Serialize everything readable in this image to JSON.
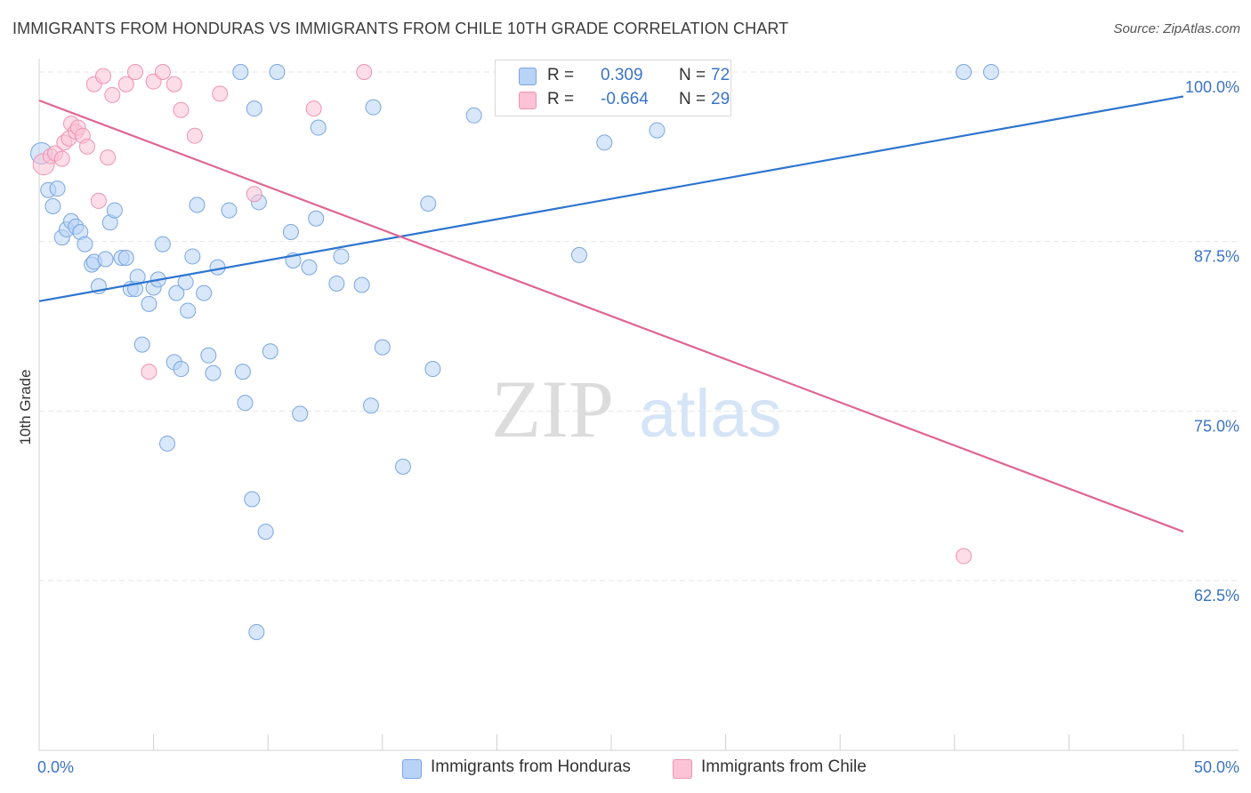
{
  "title": "IMMIGRANTS FROM HONDURAS VS IMMIGRANTS FROM CHILE 10TH GRADE CORRELATION CHART",
  "source": "Source: ZipAtlas.com",
  "watermark": {
    "zip": "ZIP",
    "atlas": "atlas"
  },
  "legend": {
    "rows": [
      {
        "r_label": "R =",
        "r_value": "0.309",
        "n_label": "N =",
        "n_value": "72",
        "color": "#b8d3f5"
      },
      {
        "r_label": "R =",
        "r_value": "-0.664",
        "n_label": "N =",
        "n_value": "29",
        "color": "#fbc3d5"
      }
    ]
  },
  "bottom_legend": [
    {
      "label": "Immigrants from Honduras",
      "color": "#b8d3f5"
    },
    {
      "label": "Immigrants from Chile",
      "color": "#fbc3d5"
    }
  ],
  "colors": {
    "honduras_fill": "#b8d3f5",
    "honduras_stroke": "#7aa6e0",
    "honduras_line": "#2d74cf",
    "chile_fill": "#fbc3d5",
    "chile_stroke": "#ef92b1",
    "chile_line": "#e06592",
    "grid": "#e6e6e6",
    "tick_label": "#3b73c7"
  },
  "chart_data": {
    "type": "scatter",
    "title": "IMMIGRANTS FROM HONDURAS VS IMMIGRANTS FROM CHILE 10TH GRADE CORRELATION CHART",
    "xlabel": "",
    "ylabel": "10th Grade",
    "xlim": [
      0,
      50
    ],
    "ylim": [
      52,
      100.8
    ],
    "x_tick_labels": [
      {
        "value": 0,
        "label": "0.0%"
      },
      {
        "value": 50,
        "label": "50.0%"
      }
    ],
    "y_tick_labels": [
      {
        "value": 100,
        "label": "100.0%"
      },
      {
        "value": 87.5,
        "label": "87.5%"
      },
      {
        "value": 75,
        "label": "75.0%"
      },
      {
        "value": 62.5,
        "label": "62.5%"
      }
    ],
    "grid": true,
    "legend_position": "top-center",
    "series": [
      {
        "name": "Immigrants from Honduras",
        "trend": {
          "x": [
            0,
            50
          ],
          "y": [
            83.1,
            98.2
          ]
        },
        "points": [
          [
            0.1,
            94.0
          ],
          [
            0.4,
            91.3
          ],
          [
            0.6,
            90.1
          ],
          [
            0.8,
            91.4
          ],
          [
            1.0,
            87.8
          ],
          [
            1.2,
            88.4
          ],
          [
            1.4,
            89.0
          ],
          [
            1.6,
            88.6
          ],
          [
            1.8,
            88.2
          ],
          [
            2.0,
            87.3
          ],
          [
            2.3,
            85.8
          ],
          [
            2.4,
            86.0
          ],
          [
            2.6,
            84.2
          ],
          [
            2.9,
            86.2
          ],
          [
            3.1,
            88.9
          ],
          [
            3.3,
            89.8
          ],
          [
            3.6,
            86.3
          ],
          [
            3.8,
            86.3
          ],
          [
            4.0,
            84.0
          ],
          [
            4.2,
            84.0
          ],
          [
            4.3,
            84.9
          ],
          [
            4.5,
            79.9
          ],
          [
            4.8,
            82.9
          ],
          [
            5.0,
            84.1
          ],
          [
            5.2,
            84.7
          ],
          [
            5.4,
            87.3
          ],
          [
            5.6,
            72.6
          ],
          [
            5.9,
            78.6
          ],
          [
            6.0,
            83.7
          ],
          [
            6.2,
            78.1
          ],
          [
            6.4,
            84.5
          ],
          [
            6.5,
            82.4
          ],
          [
            6.7,
            86.4
          ],
          [
            6.9,
            90.2
          ],
          [
            7.2,
            83.7
          ],
          [
            7.4,
            79.1
          ],
          [
            7.6,
            77.8
          ],
          [
            7.8,
            85.6
          ],
          [
            8.3,
            89.8
          ],
          [
            8.8,
            100.0
          ],
          [
            8.9,
            77.9
          ],
          [
            9.0,
            75.6
          ],
          [
            9.3,
            68.5
          ],
          [
            9.4,
            97.3
          ],
          [
            9.5,
            58.7
          ],
          [
            9.6,
            90.4
          ],
          [
            9.9,
            66.1
          ],
          [
            10.1,
            79.4
          ],
          [
            10.4,
            100.0
          ],
          [
            11.0,
            88.2
          ],
          [
            11.1,
            86.1
          ],
          [
            11.4,
            74.8
          ],
          [
            11.8,
            85.6
          ],
          [
            12.1,
            89.2
          ],
          [
            12.2,
            95.9
          ],
          [
            13.2,
            86.4
          ],
          [
            13.0,
            84.4
          ],
          [
            14.1,
            84.3
          ],
          [
            14.5,
            75.4
          ],
          [
            14.6,
            97.4
          ],
          [
            15.0,
            79.7
          ],
          [
            15.9,
            70.9
          ],
          [
            17.0,
            90.3
          ],
          [
            17.2,
            78.1
          ],
          [
            19.0,
            96.8
          ],
          [
            23.6,
            86.5
          ],
          [
            24.7,
            94.8
          ],
          [
            27.0,
            95.7
          ],
          [
            28.0,
            100.0
          ],
          [
            40.4,
            100.0
          ],
          [
            41.6,
            100.0
          ],
          [
            26.0,
            100.0
          ]
        ]
      },
      {
        "name": "Immigrants from Chile",
        "trend": {
          "x": [
            0,
            50
          ],
          "y": [
            97.9,
            66.1
          ]
        },
        "points": [
          [
            0.2,
            93.2
          ],
          [
            0.5,
            93.8
          ],
          [
            0.7,
            94.0
          ],
          [
            1.1,
            94.8
          ],
          [
            1.3,
            95.1
          ],
          [
            1.4,
            96.2
          ],
          [
            1.6,
            95.6
          ],
          [
            1.7,
            95.9
          ],
          [
            1.9,
            95.3
          ],
          [
            2.1,
            94.5
          ],
          [
            2.4,
            99.1
          ],
          [
            2.6,
            90.5
          ],
          [
            2.8,
            99.7
          ],
          [
            3.0,
            93.7
          ],
          [
            3.2,
            98.3
          ],
          [
            3.8,
            99.1
          ],
          [
            4.2,
            100.0
          ],
          [
            4.8,
            77.9
          ],
          [
            5.0,
            99.3
          ],
          [
            5.4,
            100.0
          ],
          [
            5.9,
            99.1
          ],
          [
            6.2,
            97.2
          ],
          [
            6.8,
            95.3
          ],
          [
            7.9,
            98.4
          ],
          [
            9.4,
            91.0
          ],
          [
            12.0,
            97.3
          ],
          [
            14.2,
            100.0
          ],
          [
            40.4,
            64.3
          ],
          [
            1.0,
            93.6
          ]
        ]
      }
    ]
  }
}
